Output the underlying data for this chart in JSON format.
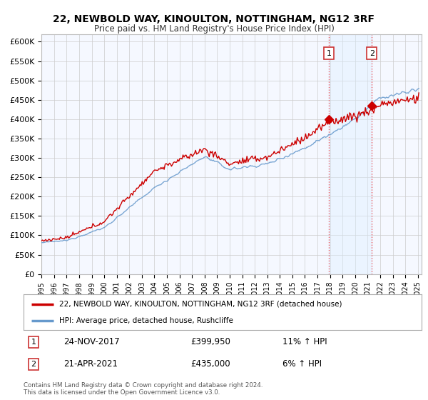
{
  "title": "22, NEWBOLD WAY, KINOULTON, NOTTINGHAM, NG12 3RF",
  "subtitle": "Price paid vs. HM Land Registry's House Price Index (HPI)",
  "xlim_left": 1995,
  "xlim_right": 2025.3,
  "ylim_bottom": 0,
  "ylim_top": 620000,
  "yticks": [
    0,
    50000,
    100000,
    150000,
    200000,
    250000,
    300000,
    350000,
    400000,
    450000,
    500000,
    550000,
    600000
  ],
  "ytick_labels": [
    "£0",
    "£50K",
    "£100K",
    "£150K",
    "£200K",
    "£250K",
    "£300K",
    "£350K",
    "£400K",
    "£450K",
    "£500K",
    "£550K",
    "£600K"
  ],
  "xtick_years": [
    1995,
    1996,
    1997,
    1998,
    1999,
    2000,
    2001,
    2002,
    2003,
    2004,
    2005,
    2006,
    2007,
    2008,
    2009,
    2010,
    2011,
    2012,
    2013,
    2014,
    2015,
    2016,
    2017,
    2018,
    2019,
    2020,
    2021,
    2022,
    2023,
    2024,
    2025
  ],
  "sale1_date": "24-NOV-2017",
  "sale1_price": 399950,
  "sale1_x": 2017.9,
  "sale2_date": "21-APR-2021",
  "sale2_price": 435000,
  "sale2_x": 2021.33,
  "sale1_pct": "11% ↑ HPI",
  "sale2_pct": "6% ↑ HPI",
  "red_line_color": "#cc0000",
  "blue_line_color": "#6699cc",
  "shade_color": "#ddeeff",
  "grid_color": "#cccccc",
  "bg_color": "#f5f8ff",
  "legend1_label": "22, NEWBOLD WAY, KINOULTON, NOTTINGHAM, NG12 3RF (detached house)",
  "legend2_label": "HPI: Average price, detached house, Rushcliffe",
  "footer": "Contains HM Land Registry data © Crown copyright and database right 2024.\nThis data is licensed under the Open Government Licence v3.0.",
  "sale1_price_str": "£399,950",
  "sale2_price_str": "£435,000"
}
